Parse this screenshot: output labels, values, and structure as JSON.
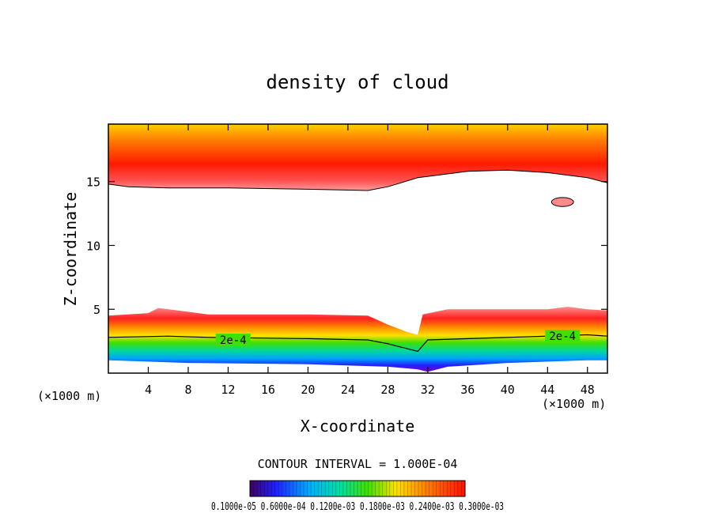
{
  "chart_data": {
    "type": "heatmap",
    "title": "density of cloud",
    "xlabel": "X-coordinate",
    "ylabel": "Z-coordinate",
    "x_unit": "(×1000 m)",
    "x_unit_right": "(×1000 m)",
    "xlim": [
      0,
      50
    ],
    "ylim": [
      0,
      19.5
    ],
    "x_ticks": [
      4,
      8,
      12,
      16,
      20,
      24,
      28,
      32,
      36,
      40,
      44,
      48
    ],
    "y_ticks": [
      5,
      10,
      15
    ],
    "x_tick_labels": [
      "4",
      "8",
      "12",
      "16",
      "20",
      "24",
      "28",
      "32",
      "36",
      "40",
      "44",
      "48"
    ],
    "y_tick_labels": [
      "5",
      "10",
      "15"
    ],
    "contour_interval": "CONTOUR INTERVAL = 1.000E-04",
    "contour_labels": [
      {
        "text": "2e-4",
        "x": 12.5,
        "z": 2.6
      },
      {
        "text": "2e-4",
        "x": 45.5,
        "z": 2.9
      }
    ],
    "colorbar_labels": "0.1000e-05 0.6000e-04 0.1200e-03 0.1800e-03 0.2400e-03 0.3000e-03",
    "colorbar_range": [
      1e-06,
      0.0003
    ],
    "upper_layer": {
      "base_profile": [
        [
          0,
          14.8
        ],
        [
          2,
          14.6
        ],
        [
          6,
          14.5
        ],
        [
          12,
          14.5
        ],
        [
          20,
          14.4
        ],
        [
          26,
          14.3
        ],
        [
          28,
          14.6
        ],
        [
          31,
          15.3
        ],
        [
          36,
          15.8
        ],
        [
          40,
          15.9
        ],
        [
          44,
          15.7
        ],
        [
          48,
          15.3
        ],
        [
          50,
          14.9
        ]
      ],
      "top": 19.5,
      "peak_density": 0.0003
    },
    "lower_layer": {
      "top_profile": [
        [
          0,
          4.5
        ],
        [
          4,
          4.7
        ],
        [
          5,
          5.1
        ],
        [
          7,
          4.9
        ],
        [
          10,
          4.6
        ],
        [
          20,
          4.6
        ],
        [
          26,
          4.5
        ],
        [
          28,
          3.8
        ],
        [
          30,
          3.2
        ],
        [
          31,
          3.0
        ],
        [
          31.5,
          4.6
        ],
        [
          34,
          5.0
        ],
        [
          40,
          5.0
        ],
        [
          44,
          5.0
        ],
        [
          46,
          5.2
        ],
        [
          48,
          5.0
        ],
        [
          50,
          4.9
        ]
      ],
      "contour_2e4": [
        [
          0,
          2.8
        ],
        [
          6,
          2.9
        ],
        [
          10,
          2.8
        ],
        [
          20,
          2.7
        ],
        [
          26,
          2.6
        ],
        [
          28,
          2.3
        ],
        [
          31,
          1.7
        ],
        [
          32,
          2.6
        ],
        [
          40,
          2.8
        ],
        [
          48,
          3.0
        ],
        [
          50,
          2.9
        ]
      ],
      "base_profile": [
        [
          0,
          1.0
        ],
        [
          8,
          0.8
        ],
        [
          20,
          0.7
        ],
        [
          28,
          0.5
        ],
        [
          31,
          0.3
        ],
        [
          32,
          0.1
        ],
        [
          34,
          0.5
        ],
        [
          40,
          0.8
        ],
        [
          48,
          1.0
        ],
        [
          50,
          1.0
        ]
      ],
      "peak_density": 0.0003
    },
    "blob": {
      "x": 45.5,
      "z": 13.4,
      "rx": 1.1,
      "rz": 0.35,
      "density": 3e-05
    }
  }
}
